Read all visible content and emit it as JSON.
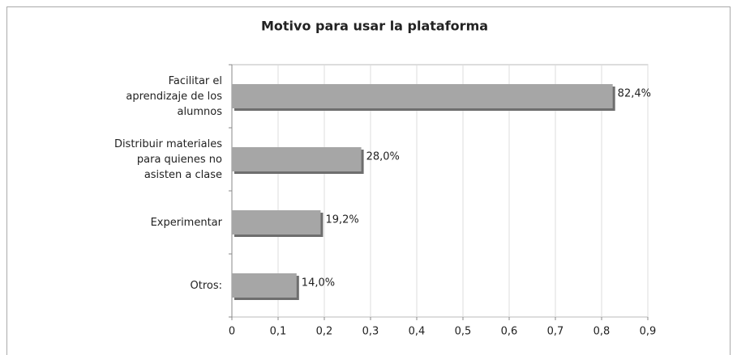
{
  "chart_data": {
    "type": "bar",
    "orientation": "horizontal",
    "title": "Motivo para usar la plataforma",
    "categories": [
      "Facilitar el\naprendizaje de los\nalumnos",
      "Distribuir materiales\npara quienes no\nasisten a clase",
      "Experimentar",
      "Otros:"
    ],
    "values": [
      0.824,
      0.28,
      0.192,
      0.14
    ],
    "value_labels": [
      "82,4%",
      "28,0%",
      "19,2%",
      "14,0%"
    ],
    "color": "#a6a6a6",
    "xlim": [
      0,
      0.9
    ],
    "xticks": [
      0,
      {
        "value": 0.1,
        "label": "0,1"
      },
      {
        "value": 0.2,
        "label": "0,2"
      },
      {
        "value": 0.3,
        "label": "0,3"
      },
      {
        "value": 0.4,
        "label": "0,4"
      },
      {
        "value": 0.5,
        "label": "0,5"
      },
      {
        "value": 0.6,
        "label": "0,6"
      },
      {
        "value": 0.7,
        "label": "0,7"
      },
      {
        "value": 0.8,
        "label": "0,8"
      },
      {
        "value": 0.9,
        "label": "0,9"
      }
    ],
    "grid": true
  }
}
